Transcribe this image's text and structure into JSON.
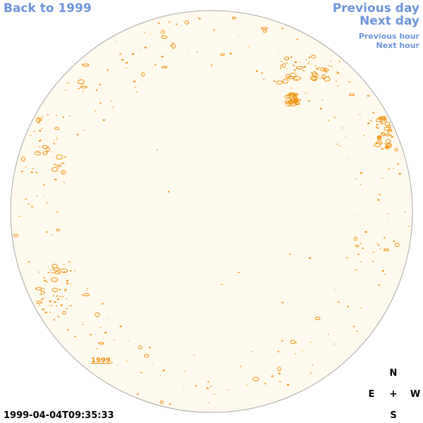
{
  "nav": {
    "back": "Back to 1999",
    "previous_day": "Previous day",
    "next_day": "Next day",
    "previous_hour": "Previous hour",
    "next_hour": "Next hour"
  },
  "map": {
    "year_label": "1999",
    "disc_color": "#fffaee",
    "disc_border": "#a8a8a8",
    "mark_color": "#f0900a"
  },
  "compass": {
    "n": "N",
    "s": "S",
    "e": "E",
    "w": "W",
    "center": "+"
  },
  "timestamp": "1999-04-04T09:35:33"
}
